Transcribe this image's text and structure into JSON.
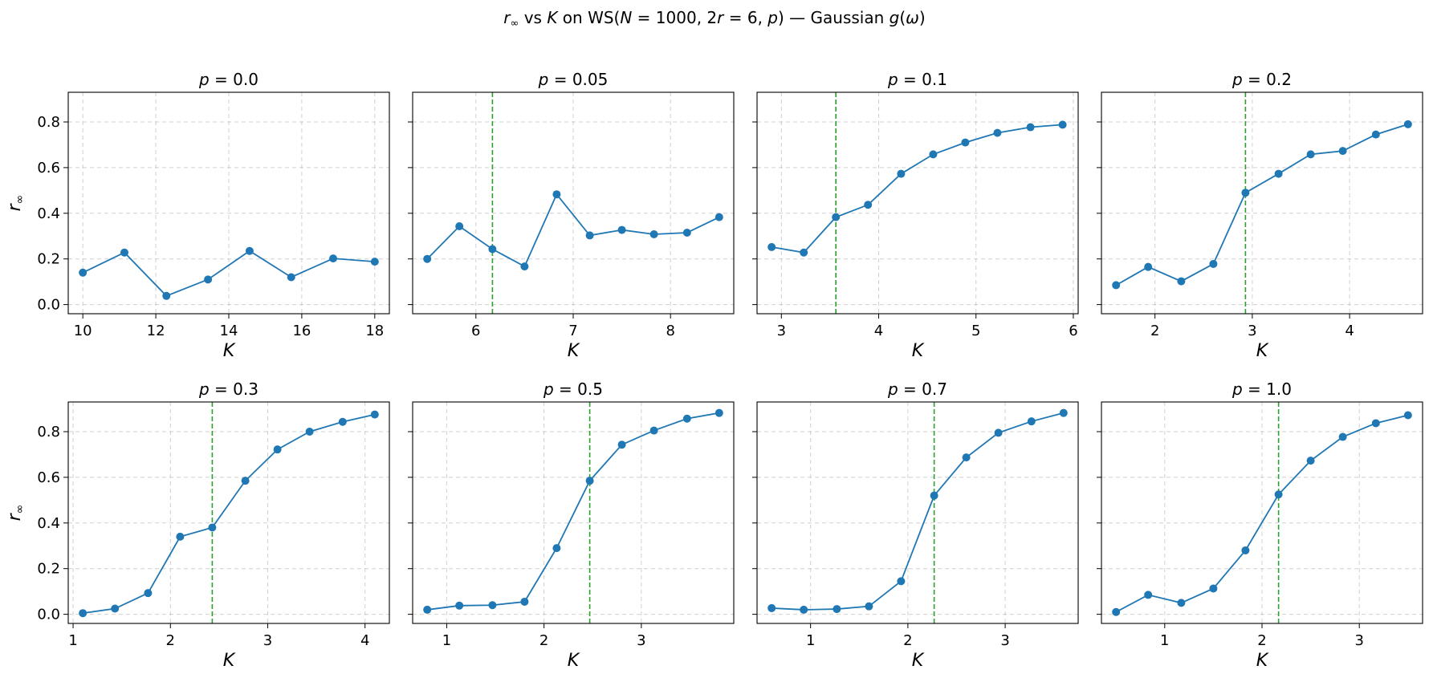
{
  "figure_title": "r∞ vs K on WS(N = 1000, 2r = 6, p) — Gaussian g(ω)",
  "colors": {
    "series": "#1f77b4",
    "threshold": "#2ca02c",
    "grid": "#b0b0b0",
    "axes": "#000000"
  },
  "chart_data": [
    {
      "type": "line",
      "title": "p = 0.0",
      "xlabel": "K",
      "ylabel": "r∞",
      "xlim": [
        9.6,
        18.4
      ],
      "ylim": [
        -0.04,
        0.93
      ],
      "xticks": [
        10,
        12,
        14,
        16,
        18
      ],
      "yticks": [
        0.0,
        0.2,
        0.4,
        0.6,
        0.8
      ],
      "grid": true,
      "threshold_K": null,
      "x": [
        10.0,
        11.14,
        12.29,
        13.43,
        14.57,
        15.71,
        16.86,
        18.0
      ],
      "y": [
        0.14,
        0.228,
        0.038,
        0.11,
        0.235,
        0.12,
        0.202,
        0.188
      ]
    },
    {
      "type": "line",
      "title": "p = 0.05",
      "xlabel": "K",
      "ylabel": "",
      "xlim": [
        5.35,
        8.65
      ],
      "ylim": [
        -0.04,
        0.93
      ],
      "xticks": [
        6,
        7,
        8
      ],
      "yticks": [
        0.0,
        0.2,
        0.4,
        0.6,
        0.8
      ],
      "grid": true,
      "threshold_K": 6.17,
      "x": [
        5.5,
        5.83,
        6.17,
        6.5,
        6.83,
        7.17,
        7.5,
        7.83,
        8.17,
        8.5
      ],
      "y": [
        0.2,
        0.343,
        0.243,
        0.167,
        0.483,
        0.303,
        0.327,
        0.308,
        0.315,
        0.383
      ]
    },
    {
      "type": "line",
      "title": "p = 0.1",
      "xlabel": "K",
      "ylabel": "",
      "xlim": [
        2.75,
        6.05
      ],
      "ylim": [
        -0.04,
        0.93
      ],
      "xticks": [
        3,
        4,
        5,
        6
      ],
      "yticks": [
        0.0,
        0.2,
        0.4,
        0.6,
        0.8
      ],
      "grid": true,
      "threshold_K": 3.56,
      "x": [
        2.9,
        3.23,
        3.56,
        3.89,
        4.23,
        4.56,
        4.89,
        5.22,
        5.56,
        5.89
      ],
      "y": [
        0.252,
        0.228,
        0.383,
        0.437,
        0.573,
        0.658,
        0.71,
        0.752,
        0.777,
        0.788
      ]
    },
    {
      "type": "line",
      "title": "p = 0.2",
      "xlabel": "K",
      "ylabel": "",
      "xlim": [
        1.45,
        4.75
      ],
      "ylim": [
        -0.04,
        0.93
      ],
      "xticks": [
        2,
        3,
        4
      ],
      "yticks": [
        0.0,
        0.2,
        0.4,
        0.6,
        0.8
      ],
      "grid": true,
      "threshold_K": 2.93,
      "x": [
        1.6,
        1.93,
        2.27,
        2.6,
        2.93,
        3.27,
        3.6,
        3.93,
        4.27,
        4.6
      ],
      "y": [
        0.085,
        0.165,
        0.102,
        0.178,
        0.49,
        0.573,
        0.658,
        0.673,
        0.745,
        0.79
      ]
    },
    {
      "type": "line",
      "title": "p = 0.3",
      "xlabel": "K",
      "ylabel": "r∞",
      "xlim": [
        0.95,
        4.25
      ],
      "ylim": [
        -0.04,
        0.93
      ],
      "xticks": [
        1,
        2,
        3,
        4
      ],
      "yticks": [
        0.0,
        0.2,
        0.4,
        0.6,
        0.8
      ],
      "grid": true,
      "threshold_K": 2.43,
      "x": [
        1.1,
        1.43,
        1.77,
        2.1,
        2.43,
        2.77,
        3.1,
        3.43,
        3.77,
        4.1
      ],
      "y": [
        0.005,
        0.025,
        0.093,
        0.34,
        0.38,
        0.585,
        0.722,
        0.8,
        0.843,
        0.875
      ]
    },
    {
      "type": "line",
      "title": "p = 0.5",
      "xlabel": "K",
      "ylabel": "",
      "xlim": [
        0.65,
        3.95
      ],
      "ylim": [
        -0.04,
        0.93
      ],
      "xticks": [
        1,
        2,
        3
      ],
      "yticks": [
        0.0,
        0.2,
        0.4,
        0.6,
        0.8
      ],
      "grid": true,
      "threshold_K": 2.47,
      "x": [
        0.8,
        1.13,
        1.47,
        1.8,
        2.13,
        2.47,
        2.8,
        3.13,
        3.47,
        3.8
      ],
      "y": [
        0.02,
        0.038,
        0.04,
        0.055,
        0.29,
        0.585,
        0.743,
        0.805,
        0.857,
        0.882
      ]
    },
    {
      "type": "line",
      "title": "p = 0.7",
      "xlabel": "K",
      "ylabel": "",
      "xlim": [
        0.45,
        3.75
      ],
      "ylim": [
        -0.04,
        0.93
      ],
      "xticks": [
        1,
        2,
        3
      ],
      "yticks": [
        0.0,
        0.2,
        0.4,
        0.6,
        0.8
      ],
      "grid": true,
      "threshold_K": 2.27,
      "x": [
        0.6,
        0.93,
        1.27,
        1.6,
        1.93,
        2.27,
        2.6,
        2.93,
        3.27,
        3.6
      ],
      "y": [
        0.027,
        0.02,
        0.023,
        0.035,
        0.145,
        0.52,
        0.687,
        0.795,
        0.845,
        0.882
      ]
    },
    {
      "type": "line",
      "title": "p = 1.0",
      "xlabel": "K",
      "ylabel": "",
      "xlim": [
        0.35,
        3.65
      ],
      "ylim": [
        -0.04,
        0.93
      ],
      "xticks": [
        1,
        2,
        3
      ],
      "yticks": [
        0.0,
        0.2,
        0.4,
        0.6,
        0.8
      ],
      "grid": true,
      "threshold_K": 2.17,
      "x": [
        0.5,
        0.83,
        1.17,
        1.5,
        1.83,
        2.17,
        2.5,
        2.83,
        3.17,
        3.5
      ],
      "y": [
        0.01,
        0.085,
        0.05,
        0.113,
        0.28,
        0.525,
        0.673,
        0.777,
        0.837,
        0.872
      ]
    }
  ]
}
